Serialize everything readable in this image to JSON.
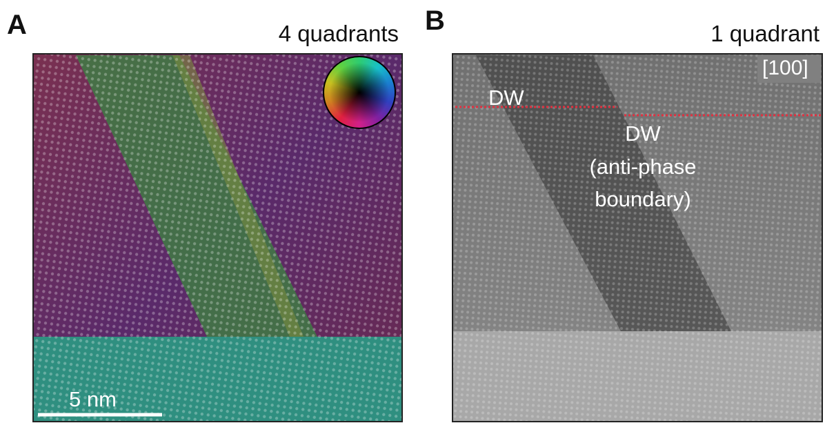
{
  "panels": [
    {
      "label": "A",
      "title": "4 quadrants",
      "scale_bar": "5 nm"
    },
    {
      "label": "B",
      "title": "1 quadrant",
      "orientation": "[100]",
      "annotations": [
        "DW",
        "DW",
        "(anti-phase",
        "boundary)"
      ]
    }
  ]
}
